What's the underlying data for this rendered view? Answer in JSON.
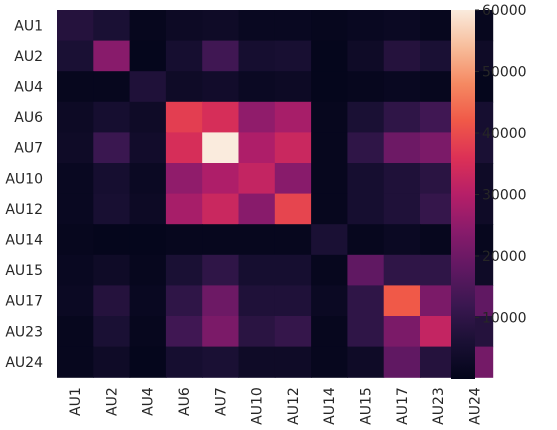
{
  "chart_data": {
    "type": "heatmap",
    "title": "",
    "xlabel": "",
    "ylabel": "",
    "x_categories": [
      "AU1",
      "AU2",
      "AU4",
      "AU6",
      "AU7",
      "AU10",
      "AU12",
      "AU14",
      "AU15",
      "AU17",
      "AU23",
      "AU24"
    ],
    "y_categories": [
      "AU1",
      "AU2",
      "AU4",
      "AU6",
      "AU7",
      "AU10",
      "AU12",
      "AU14",
      "AU15",
      "AU17",
      "AU23",
      "AU24"
    ],
    "values": [
      [
        8000,
        6000,
        1000,
        2500,
        3000,
        1500,
        1500,
        1000,
        1500,
        2000,
        1000,
        1000
      ],
      [
        6000,
        24000,
        500,
        5000,
        13000,
        5000,
        5500,
        500,
        3000,
        8000,
        6000,
        3000
      ],
      [
        1000,
        1000,
        7000,
        3000,
        4000,
        2000,
        2500,
        500,
        1000,
        1500,
        1000,
        500
      ],
      [
        2500,
        5000,
        3000,
        38000,
        35000,
        25000,
        28000,
        1000,
        6000,
        10000,
        13000,
        5000
      ],
      [
        3000,
        12000,
        4000,
        35000,
        60000,
        29000,
        33000,
        1000,
        10000,
        20000,
        22000,
        6000
      ],
      [
        1500,
        5000,
        2000,
        25000,
        29000,
        32000,
        24000,
        1000,
        5000,
        7000,
        9000,
        3000
      ],
      [
        1500,
        5500,
        2500,
        28000,
        33000,
        24000,
        39000,
        1000,
        5000,
        7000,
        11000,
        3000
      ],
      [
        1000,
        500,
        500,
        1000,
        1000,
        1000,
        1000,
        6000,
        1000,
        2000,
        1000,
        1000
      ],
      [
        1500,
        3000,
        1000,
        6000,
        10000,
        5000,
        5000,
        1000,
        18000,
        10000,
        10000,
        3000
      ],
      [
        2000,
        8000,
        1500,
        10000,
        20000,
        7000,
        7000,
        2000,
        10000,
        42000,
        22000,
        18000
      ],
      [
        1000,
        6000,
        1000,
        13000,
        22000,
        9000,
        11000,
        1000,
        10000,
        22000,
        32000,
        8000
      ],
      [
        1000,
        3000,
        500,
        5000,
        6000,
        3000,
        3000,
        1000,
        3000,
        18000,
        8000,
        21000
      ]
    ],
    "colorbar": {
      "min": 0,
      "max": 60000,
      "ticks": [
        10000,
        20000,
        30000,
        40000,
        50000,
        60000
      ],
      "colormap": "rocket"
    },
    "grid": false,
    "legend_placement": "right"
  }
}
